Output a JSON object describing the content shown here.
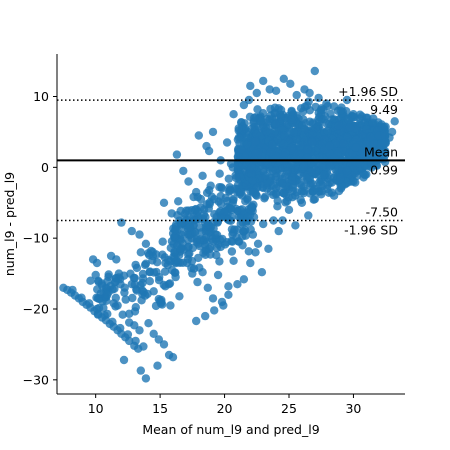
{
  "chart_data": {
    "type": "scatter",
    "title": "",
    "xlabel": "Mean of num_l9 and pred_l9",
    "ylabel": "num_l9 - pred_l9",
    "xlim": [
      7.0,
      34.0
    ],
    "ylim": [
      -32.0,
      16.0
    ],
    "x_ticks": [
      10,
      15,
      20,
      25,
      30
    ],
    "y_ticks": [
      -30,
      -20,
      -10,
      0,
      10
    ],
    "x_tick_labels": [
      "10",
      "15",
      "20",
      "25",
      "30"
    ],
    "y_tick_labels": [
      "−30",
      "−20",
      "−10",
      "0",
      "10"
    ],
    "grid": false,
    "point_color": "#1f77b4",
    "point_alpha": 0.8,
    "series": [
      {
        "points": [
          [
            7.5,
            -17.0
          ],
          [
            7.8,
            -17.3
          ],
          [
            8.1,
            -17.7
          ],
          [
            8.4,
            -18.1
          ],
          [
            8.7,
            -18.5
          ],
          [
            9.0,
            -19.0
          ],
          [
            9.3,
            -19.4
          ],
          [
            9.6,
            -19.8
          ],
          [
            9.9,
            -20.3
          ],
          [
            10.2,
            -20.7
          ],
          [
            10.5,
            -21.2
          ],
          [
            10.8,
            -21.6
          ],
          [
            11.1,
            -22.1
          ],
          [
            11.4,
            -22.5
          ],
          [
            11.7,
            -23.0
          ],
          [
            12.0,
            -23.5
          ],
          [
            12.3,
            -24.0
          ],
          [
            12.6,
            -24.5
          ],
          [
            13.0,
            -25.2
          ],
          [
            13.3,
            -25.6
          ],
          [
            8.2,
            -17.3
          ],
          [
            8.9,
            -18.4
          ],
          [
            9.5,
            -19.2
          ],
          [
            10.1,
            -20.0
          ],
          [
            10.7,
            -20.9
          ],
          [
            11.3,
            -21.8
          ],
          [
            11.9,
            -22.7
          ],
          [
            12.5,
            -23.6
          ],
          [
            13.1,
            -24.5
          ],
          [
            13.7,
            -25.3
          ],
          [
            9.8,
            -13.0
          ],
          [
            10.1,
            -13.5
          ],
          [
            10.5,
            -16.7
          ],
          [
            10.8,
            -17.0
          ],
          [
            11.2,
            -12.5
          ],
          [
            11.6,
            -13.0
          ],
          [
            11.8,
            -15.0
          ],
          [
            12.2,
            -15.3
          ],
          [
            12.8,
            -16.5
          ],
          [
            13.2,
            -14.2
          ],
          [
            13.5,
            -12.0
          ],
          [
            13.9,
            -13.6
          ],
          [
            14.2,
            -14.8
          ],
          [
            14.5,
            -17.5
          ],
          [
            14.9,
            -18.6
          ],
          [
            15.1,
            -19.0
          ],
          [
            15.4,
            -16.8
          ],
          [
            15.8,
            -19.5
          ],
          [
            16.2,
            -15.5
          ],
          [
            16.5,
            -18.2
          ],
          [
            14.1,
            -22.0
          ],
          [
            14.5,
            -23.5
          ],
          [
            14.9,
            -24.3
          ],
          [
            15.3,
            -25.0
          ],
          [
            15.7,
            -26.5
          ],
          [
            16.0,
            -26.8
          ],
          [
            13.5,
            -28.7
          ],
          [
            13.9,
            -29.8
          ],
          [
            14.8,
            -28.0
          ],
          [
            12.2,
            -27.2
          ],
          [
            9.6,
            -16.0
          ],
          [
            10.0,
            -15.2
          ],
          [
            10.4,
            -17.8
          ],
          [
            10.9,
            -18.0
          ],
          [
            11.4,
            -19.2
          ],
          [
            11.7,
            -19.5
          ],
          [
            12.1,
            -20.8
          ],
          [
            12.6,
            -21.9
          ],
          [
            13.0,
            -22.3
          ],
          [
            13.4,
            -23.0
          ],
          [
            12.0,
            -7.8
          ],
          [
            12.8,
            -9.0
          ],
          [
            13.4,
            -9.5
          ],
          [
            13.9,
            -10.8
          ],
          [
            14.3,
            -11.8
          ],
          [
            14.7,
            -12.3
          ],
          [
            15.2,
            -10.5
          ],
          [
            15.6,
            -13.8
          ],
          [
            16.1,
            -9.8
          ],
          [
            16.6,
            -11.5
          ],
          [
            15.3,
            -5.0
          ],
          [
            15.9,
            -6.5
          ],
          [
            16.4,
            -4.8
          ],
          [
            16.9,
            -7.2
          ],
          [
            17.3,
            -8.5
          ],
          [
            17.7,
            -6.0
          ],
          [
            18.1,
            -10.2
          ],
          [
            18.5,
            -7.8
          ],
          [
            18.9,
            -12.3
          ],
          [
            19.3,
            -9.5
          ],
          [
            16.3,
            1.8
          ],
          [
            16.8,
            -0.5
          ],
          [
            17.2,
            -2.0
          ],
          [
            17.8,
            -3.5
          ],
          [
            18.3,
            -1.2
          ],
          [
            18.8,
            2.3
          ],
          [
            19.2,
            -4.5
          ],
          [
            19.6,
            -2.8
          ],
          [
            20.0,
            -6.2
          ],
          [
            20.4,
            -3.3
          ],
          [
            17.1,
            -13.5
          ],
          [
            17.5,
            -15.0
          ],
          [
            17.9,
            -16.2
          ],
          [
            18.3,
            -14.8
          ],
          [
            18.7,
            -17.0
          ],
          [
            19.1,
            -18.5
          ],
          [
            19.5,
            -15.2
          ],
          [
            19.9,
            -19.5
          ],
          [
            20.3,
            -16.8
          ],
          [
            20.7,
            -13.2
          ],
          [
            17.8,
            -21.7
          ],
          [
            18.5,
            -21.0
          ],
          [
            19.2,
            -20.2
          ],
          [
            19.8,
            -19.0
          ],
          [
            20.3,
            -18.0
          ],
          [
            21.0,
            -16.5
          ],
          [
            21.5,
            -15.8
          ],
          [
            22.0,
            -13.5
          ],
          [
            22.4,
            -12.0
          ],
          [
            22.9,
            -14.8
          ],
          [
            18.0,
            4.5
          ],
          [
            18.6,
            3.0
          ],
          [
            19.1,
            5.0
          ],
          [
            19.7,
            1.0
          ],
          [
            20.2,
            3.5
          ],
          [
            20.7,
            7.5
          ],
          [
            21.1,
            5.5
          ],
          [
            21.5,
            8.8
          ],
          [
            21.9,
            9.5
          ],
          [
            22.3,
            7.0
          ],
          [
            20.6,
            -10.5
          ],
          [
            21.0,
            -8.8
          ],
          [
            21.4,
            -11.0
          ],
          [
            21.8,
            -7.0
          ],
          [
            22.2,
            -9.5
          ],
          [
            22.6,
            -10.8
          ],
          [
            23.0,
            -8.0
          ],
          [
            23.4,
            -11.5
          ],
          [
            23.8,
            -7.5
          ],
          [
            24.2,
            -9.0
          ],
          [
            20.5,
            0.5
          ],
          [
            20.9,
            -1.5
          ],
          [
            21.3,
            2.5
          ],
          [
            21.7,
            -2.5
          ],
          [
            22.1,
            0.0
          ],
          [
            22.5,
            -4.0
          ],
          [
            22.9,
            1.5
          ],
          [
            23.3,
            -3.0
          ],
          [
            23.7,
            3.2
          ],
          [
            24.1,
            -5.5
          ],
          [
            22.0,
            11.5
          ],
          [
            22.5,
            10.5
          ],
          [
            23.0,
            12.2
          ],
          [
            23.5,
            11.0
          ],
          [
            24.0,
            10.8
          ],
          [
            24.6,
            12.5
          ],
          [
            25.1,
            11.8
          ],
          [
            25.6,
            10.2
          ],
          [
            26.2,
            11.0
          ],
          [
            27.0,
            13.6
          ],
          [
            26.6,
            10.5
          ],
          [
            27.3,
            9.8
          ],
          [
            27.9,
            9.0
          ],
          [
            28.5,
            8.6
          ],
          [
            29.0,
            8.0
          ],
          [
            29.5,
            9.5
          ],
          [
            30.0,
            7.5
          ],
          [
            30.5,
            6.2
          ],
          [
            31.0,
            7.0
          ],
          [
            31.5,
            6.3
          ],
          [
            24.5,
            -7.5
          ],
          [
            25.0,
            -6.0
          ],
          [
            25.5,
            -8.2
          ],
          [
            26.0,
            -5.0
          ],
          [
            26.5,
            -6.8
          ],
          [
            27.0,
            -4.5
          ],
          [
            27.5,
            -3.8
          ],
          [
            28.0,
            -2.5
          ],
          [
            28.5,
            -4.0
          ],
          [
            29.0,
            -1.5
          ],
          [
            29.5,
            -0.5
          ],
          [
            30.0,
            -2.0
          ],
          [
            30.5,
            0.5
          ],
          [
            31.0,
            -1.0
          ],
          [
            31.5,
            1.5
          ],
          [
            32.0,
            2.5
          ],
          [
            32.5,
            3.5
          ],
          [
            33.0,
            5.0
          ],
          [
            33.2,
            6.5
          ],
          [
            32.8,
            4.2
          ]
        ]
      }
    ],
    "dense_regions": [
      {
        "x_range": [
          21.0,
          32.5
        ],
        "y_center_at_x": [
          [
            21.0,
            2.0
          ],
          [
            25.0,
            2.0
          ],
          [
            29.0,
            2.5
          ],
          [
            32.5,
            3.5
          ]
        ],
        "y_half_width_at_x": [
          [
            21.0,
            5.5
          ],
          [
            25.0,
            8.0
          ],
          [
            29.0,
            6.5
          ],
          [
            32.5,
            3.0
          ]
        ],
        "count": 1400
      },
      {
        "x_range": [
          16.0,
          22.5
        ],
        "y_center_at_x": [
          [
            16.0,
            -11.0
          ],
          [
            19.0,
            -8.0
          ],
          [
            22.5,
            -4.0
          ]
        ],
        "y_half_width_at_x": [
          [
            16.0,
            5.0
          ],
          [
            19.0,
            7.0
          ],
          [
            22.5,
            8.0
          ]
        ],
        "count": 260
      },
      {
        "x_range": [
          10.0,
          16.0
        ],
        "y_center_at_x": [
          [
            10.0,
            -18.0
          ],
          [
            13.0,
            -17.0
          ],
          [
            16.0,
            -14.0
          ]
        ],
        "y_half_width_at_x": [
          [
            10.0,
            3.5
          ],
          [
            13.0,
            5.5
          ],
          [
            16.0,
            6.0
          ]
        ],
        "count": 90
      }
    ],
    "reference_lines": [
      {
        "kind": "mean",
        "y": 0.99,
        "style": "solid",
        "label_top": "Mean",
        "label_bottom": "0.99"
      },
      {
        "kind": "upper_loa",
        "y": 9.49,
        "style": "dotted",
        "label_top": "+1.96 SD",
        "label_bottom": "9.49"
      },
      {
        "kind": "lower_loa",
        "y": -7.5,
        "style": "dotted",
        "label_top": "-7.50",
        "label_bottom": "-1.96 SD"
      }
    ]
  }
}
